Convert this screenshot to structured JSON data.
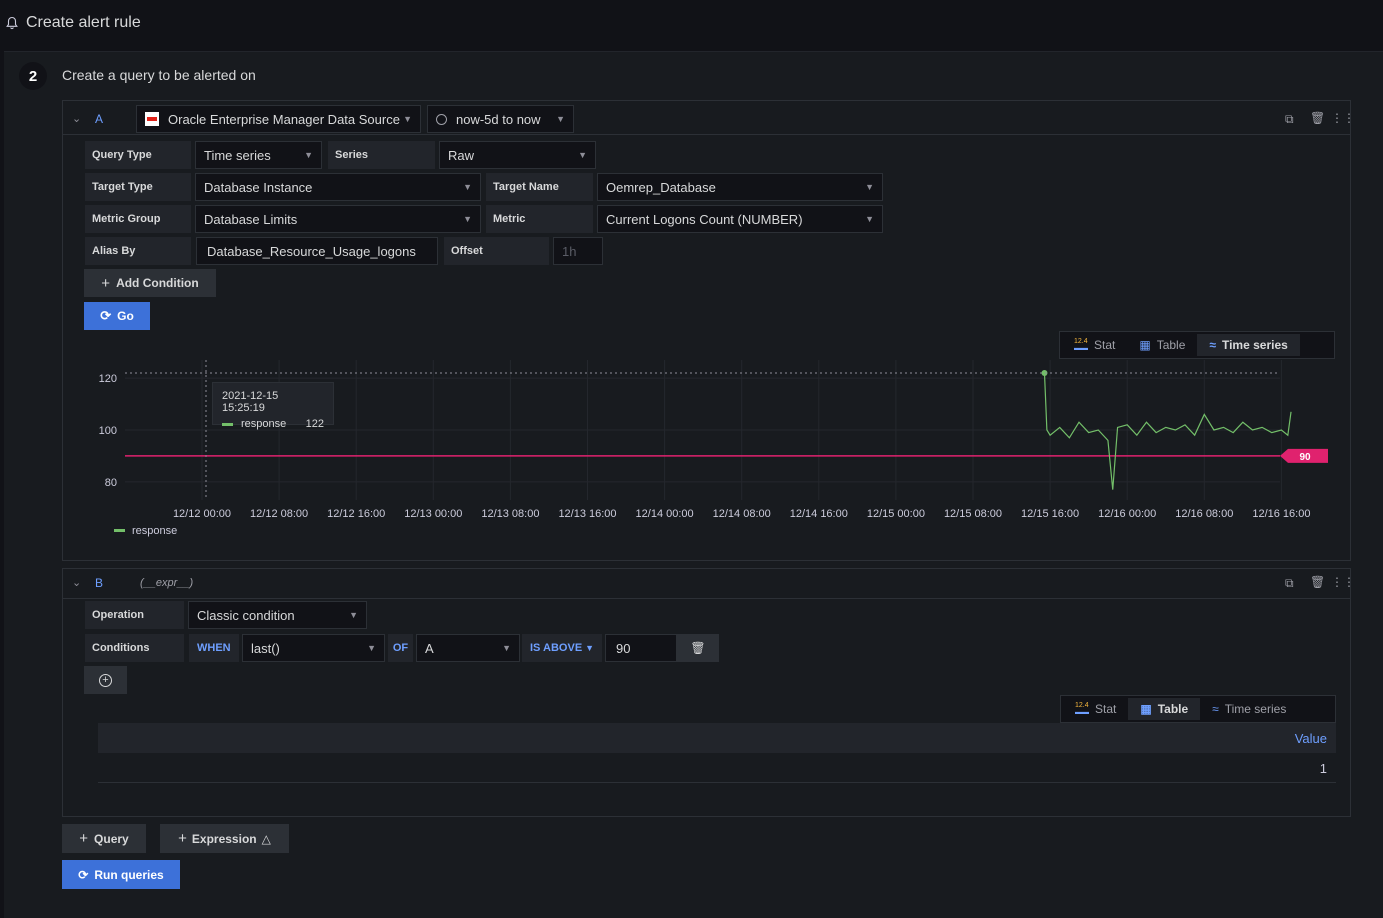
{
  "page": {
    "title": "Create alert rule"
  },
  "step": {
    "number": "2",
    "title": "Create a query to be alerted on"
  },
  "query_a": {
    "ref_id": "A",
    "datasource": "Oracle Enterprise Manager Data Source",
    "time_range": "now-5d to now",
    "query_type_label": "Query Type",
    "query_type_value": "Time series",
    "series_label": "Series",
    "series_value": "Raw",
    "target_type_label": "Target Type",
    "target_type_value": "Database Instance",
    "target_name_label": "Target Name",
    "target_name_value": "Oemrep_Database",
    "metric_group_label": "Metric Group",
    "metric_group_value": "Database Limits",
    "metric_label": "Metric",
    "metric_value": "Current Logons Count (NUMBER)",
    "alias_label": "Alias By",
    "alias_value": "Database_Resource_Usage_logons",
    "offset_label": "Offset",
    "offset_placeholder": "1h",
    "add_condition": "Add Condition",
    "go": "Go",
    "viz": {
      "stat": "Stat",
      "table": "Table",
      "timeseries": "Time series",
      "active": "timeseries"
    },
    "tooltip": {
      "time": "2021-12-15 15:25:19",
      "series": "response",
      "value": "122"
    }
  },
  "chart_data": {
    "type": "line",
    "title": "",
    "xlabel": "",
    "ylabel": "",
    "x_ticks": [
      "12/12 00:00",
      "12/12 08:00",
      "12/12 16:00",
      "12/13 00:00",
      "12/13 08:00",
      "12/13 16:00",
      "12/14 00:00",
      "12/14 08:00",
      "12/14 16:00",
      "12/15 00:00",
      "12/15 08:00",
      "12/15 16:00",
      "12/16 00:00",
      "12/16 08:00",
      "12/16 16:00"
    ],
    "y_ticks": [
      80,
      100,
      120
    ],
    "ylim": [
      73,
      127
    ],
    "series": [
      {
        "name": "response",
        "color": "#73bf69",
        "x": [
          "12/15 15:25",
          "12/15 15:40",
          "12/15 16:00",
          "12/15 17:00",
          "12/15 18:00",
          "12/15 19:00",
          "12/15 20:00",
          "12/15 21:00",
          "12/15 22:00",
          "12/15 22:30",
          "12/15 23:00",
          "12/16 00:00",
          "12/16 01:00",
          "12/16 02:00",
          "12/16 03:00",
          "12/16 04:00",
          "12/16 05:00",
          "12/16 06:00",
          "12/16 07:00",
          "12/16 08:00",
          "12/16 09:00",
          "12/16 10:00",
          "12/16 11:00",
          "12/16 12:00",
          "12/16 13:00",
          "12/16 14:00",
          "12/16 15:00",
          "12/16 16:00",
          "12/16 16:40",
          "12/16 17:00"
        ],
        "y": [
          122,
          100,
          98,
          101,
          97,
          103,
          99,
          100,
          96,
          77,
          101,
          102,
          98,
          103,
          99,
          101,
          100,
          102,
          98,
          106,
          100,
          101,
          99,
          103,
          100,
          101,
          99,
          100,
          98,
          107
        ]
      }
    ],
    "threshold": {
      "value": 90,
      "label": "90",
      "color": "#e0226e"
    },
    "legend": {
      "placement": "bottom-left",
      "items": [
        "response"
      ]
    }
  },
  "query_b": {
    "ref_id": "B",
    "expr_name": "(__expr__)",
    "operation_label": "Operation",
    "operation_value": "Classic condition",
    "conditions_label": "Conditions",
    "when": "WHEN",
    "reducer": "last()",
    "of": "OF",
    "query_ref": "A",
    "evaluator": "IS ABOVE",
    "threshold": "90",
    "viz": {
      "stat": "Stat",
      "table": "Table",
      "timeseries": "Time series",
      "active": "table"
    },
    "table": {
      "header": "Value",
      "rows": [
        "1"
      ]
    }
  },
  "footer": {
    "query": "Query",
    "expression": "Expression",
    "run": "Run queries"
  }
}
